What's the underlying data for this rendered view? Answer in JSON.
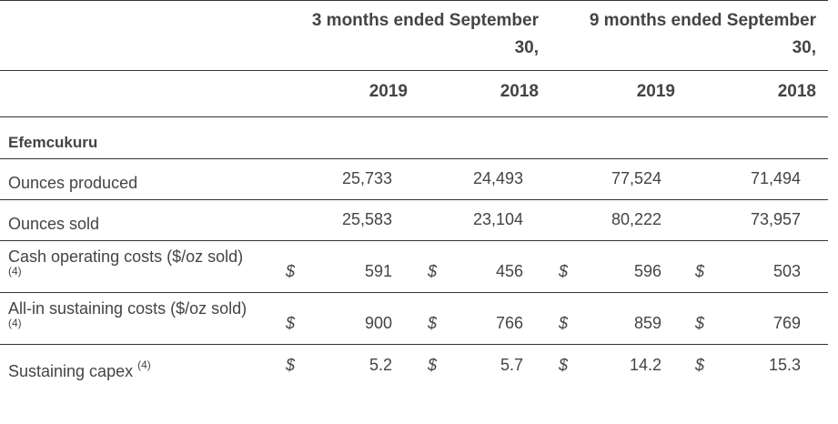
{
  "header": {
    "period_3m_line1": "3 months ended September",
    "period_3m_line2": "30,",
    "period_9m_line1": "9 months ended September",
    "period_9m_line2": "30,",
    "years": [
      "2019",
      "2018",
      "2019",
      "2018"
    ]
  },
  "section": "Efemcukuru",
  "currency_symbol": "$",
  "rows": [
    {
      "label": "Ounces produced",
      "footnote": "",
      "values": [
        "25,733",
        "24,493",
        "77,524",
        "71,494"
      ]
    },
    {
      "label": "Ounces sold",
      "footnote": "",
      "values": [
        "25,583",
        "23,104",
        "80,222",
        "73,957"
      ]
    },
    {
      "label": "Cash operating costs ($/oz sold)",
      "footnote": "(4)",
      "values": [
        "591",
        "456",
        "596",
        "503"
      ]
    },
    {
      "label": "All-in sustaining costs ($/oz sold)",
      "footnote": "(4)",
      "values": [
        "900",
        "766",
        "859",
        "769"
      ]
    },
    {
      "label": "Sustaining capex",
      "footnote": "(4)",
      "values": [
        "5.2",
        "5.7",
        "14.2",
        "15.3"
      ]
    }
  ]
}
